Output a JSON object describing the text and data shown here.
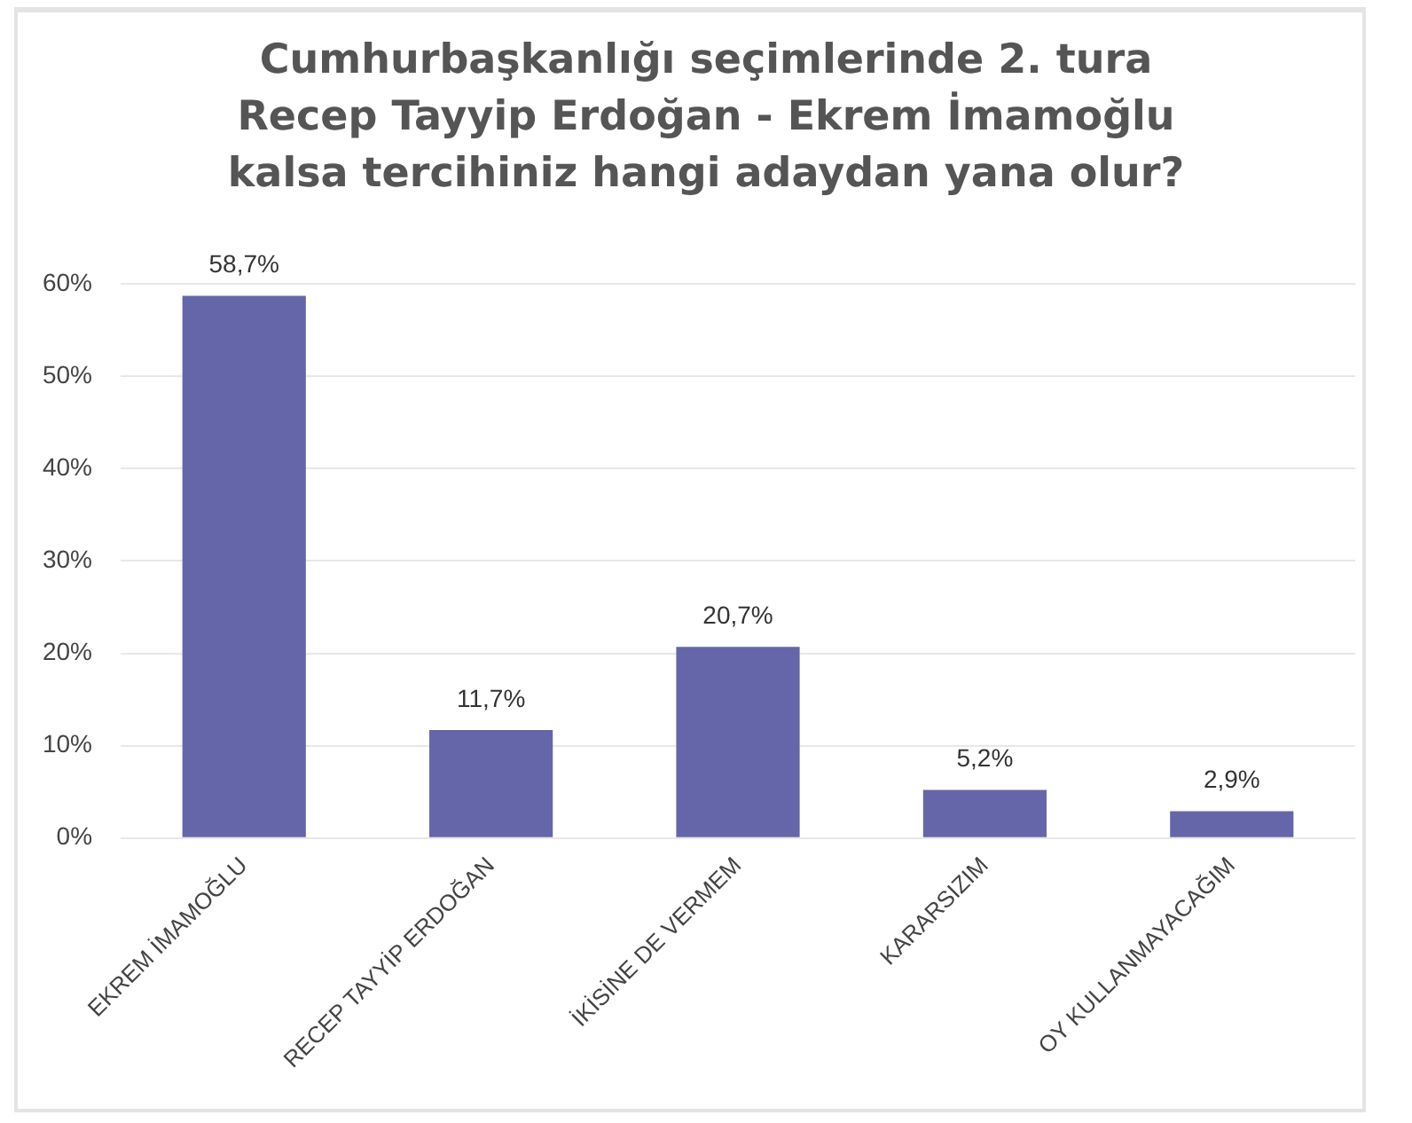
{
  "chart_data": {
    "type": "bar",
    "title": "Cumhurbaşkanlığı seçimlerinde 2. tura Recep Tayyip Erdoğan - Ekrem İmamoğlu kalsa tercihiniz hangi adaydan yana olur?",
    "categories": [
      "EKREM İMAMOĞLU",
      "RECEP TAYYİP ERDOĞAN",
      "İKİSİNE DE VERMEM",
      "KARARSIZIM",
      "OY KULLANMAYACAĞIM"
    ],
    "values": [
      58.7,
      11.7,
      20.7,
      5.2,
      2.9
    ],
    "value_labels": [
      "58,7%",
      "11,7%",
      "20,7%",
      "5,2%",
      "2,9%"
    ],
    "color": "#6566a9",
    "ylim": [
      0,
      60
    ],
    "yticks": [
      {
        "value": 0,
        "label": "0%"
      },
      {
        "value": 10,
        "label": "10%"
      },
      {
        "value": 20,
        "label": "20%"
      },
      {
        "value": 30,
        "label": "30%"
      },
      {
        "value": 40,
        "label": "40%"
      },
      {
        "value": 50,
        "label": "50%"
      },
      {
        "value": 60,
        "label": "60%"
      }
    ],
    "grid": "y"
  }
}
